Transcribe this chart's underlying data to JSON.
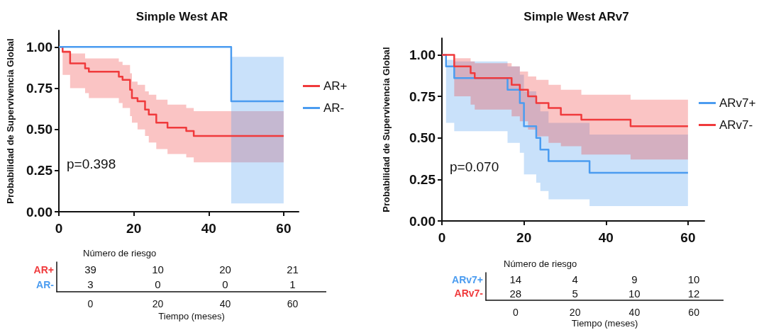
{
  "chart_data": [
    {
      "type": "step",
      "title": "Simple West AR",
      "ylabel": "Probabilidad de Supervivencia Global",
      "annotations": [
        "p=0.398"
      ],
      "legend": "right",
      "xlim": [
        0,
        64
      ],
      "xticks": [
        0,
        20,
        40,
        60
      ],
      "ylim": [
        0,
        1.1
      ],
      "yticks": [
        {
          "value": 0,
          "label": "0.00"
        },
        {
          "value": 0.25,
          "label": "0.25"
        },
        {
          "value": 0.5,
          "label": "0.50"
        },
        {
          "value": 0.75,
          "label": "0.75"
        },
        {
          "value": 1,
          "label": "1.00"
        }
      ],
      "series": [
        {
          "name": "AR+",
          "color": "#f03a3c",
          "x": [
            0,
            1,
            3,
            7,
            8,
            16,
            17,
            19,
            19.5,
            21,
            23,
            24,
            26,
            29,
            34,
            36,
            60
          ],
          "values": [
            1,
            0.97,
            0.9,
            0.87,
            0.85,
            0.82,
            0.8,
            0.74,
            0.69,
            0.67,
            0.62,
            0.59,
            0.54,
            0.51,
            0.49,
            0.46,
            0.46
          ],
          "upper": [
            1,
            0.98,
            0.96,
            0.93,
            0.93,
            0.91,
            0.89,
            0.84,
            0.79,
            0.77,
            0.73,
            0.71,
            0.68,
            0.65,
            0.63,
            0.61,
            0.61
          ],
          "lower": [
            1,
            0.83,
            0.75,
            0.72,
            0.69,
            0.66,
            0.63,
            0.58,
            0.54,
            0.5,
            0.46,
            0.42,
            0.38,
            0.35,
            0.33,
            0.3,
            0.3
          ]
        },
        {
          "name": "AR-",
          "color": "#4b9cf0",
          "x": [
            0,
            46,
            60
          ],
          "values": [
            1,
            0.67,
            0.67
          ],
          "upper": [
            1,
            0.94,
            0.94
          ],
          "lower": [
            1,
            0.05,
            0.05
          ]
        }
      ]
    },
    {
      "type": "step",
      "title": "Simple West ARv7",
      "ylabel": "Probabilidad de Supervivencia Global",
      "annotations": [
        "p=0.070"
      ],
      "legend": "right",
      "xlim": [
        0,
        64
      ],
      "xticks": [
        0,
        20,
        40,
        60
      ],
      "ylim": [
        0,
        1.1
      ],
      "yticks": [
        {
          "value": 0,
          "label": "0.00"
        },
        {
          "value": 0.25,
          "label": "0.25"
        },
        {
          "value": 0.5,
          "label": "0.50"
        },
        {
          "value": 0.75,
          "label": "0.75"
        },
        {
          "value": 1,
          "label": "1.00"
        }
      ],
      "series": [
        {
          "name": "ARv7+",
          "color": "#4b9cf0",
          "x": [
            0,
            1,
            3,
            16,
            19,
            20,
            23,
            24,
            26,
            36,
            60
          ],
          "values": [
            1,
            0.93,
            0.86,
            0.79,
            0.71,
            0.57,
            0.5,
            0.43,
            0.36,
            0.29,
            0.29
          ],
          "upper": [
            1,
            0.97,
            0.96,
            0.93,
            0.88,
            0.78,
            0.71,
            0.66,
            0.59,
            0.52,
            0.52
          ],
          "lower": [
            1,
            0.59,
            0.54,
            0.47,
            0.41,
            0.28,
            0.23,
            0.18,
            0.13,
            0.09,
            0.09
          ]
        },
        {
          "name": "ARv7-",
          "color": "#f03a3c",
          "x": [
            0,
            3,
            7,
            8,
            17,
            19,
            21,
            23,
            26,
            29,
            34,
            46,
            60
          ],
          "values": [
            1,
            0.93,
            0.89,
            0.86,
            0.82,
            0.79,
            0.75,
            0.71,
            0.68,
            0.64,
            0.61,
            0.57,
            0.57
          ],
          "upper": [
            1,
            0.98,
            0.96,
            0.95,
            0.93,
            0.9,
            0.87,
            0.85,
            0.82,
            0.79,
            0.76,
            0.73,
            0.73
          ],
          "lower": [
            1,
            0.75,
            0.7,
            0.67,
            0.63,
            0.6,
            0.55,
            0.51,
            0.47,
            0.45,
            0.4,
            0.37,
            0.37
          ]
        }
      ]
    },
    {
      "type": "heatmap",
      "title": "Número de riesgo",
      "xlabel": "Tiempo (meses)",
      "categories": [
        "0",
        "20",
        "40",
        "60"
      ],
      "y_categories": [
        "AR+",
        "AR-"
      ],
      "data_labels": true,
      "cells": [
        [
          39,
          10,
          20,
          21
        ],
        [
          3,
          0,
          0,
          1
        ]
      ]
    },
    {
      "type": "heatmap",
      "title": "Número de riesgo",
      "xlabel": "Tiempo (meses)",
      "categories": [
        "0",
        "20",
        "40",
        "60"
      ],
      "y_categories": [
        "ARv7+",
        "ARv7-"
      ],
      "data_labels": true,
      "cells": [
        [
          14,
          4,
          9,
          10
        ],
        [
          28,
          5,
          10,
          12
        ]
      ]
    }
  ]
}
